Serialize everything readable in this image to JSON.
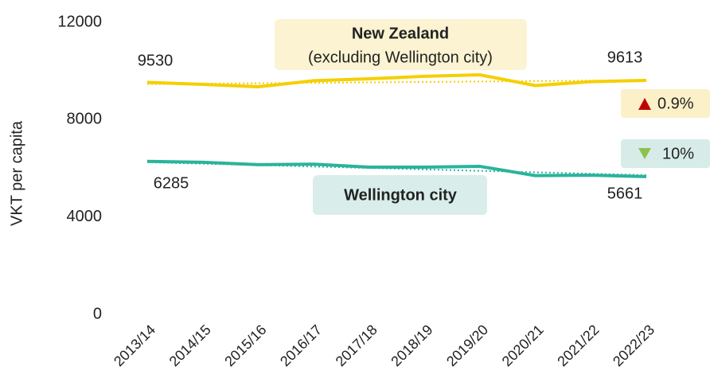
{
  "chart_data": {
    "type": "line",
    "y_label": "VKT per capita",
    "categories": [
      "2013/14",
      "2014/15",
      "2015/16",
      "2016/17",
      "2017/18",
      "2018/19",
      "2019/20",
      "2020/21",
      "2021/22",
      "2022/23"
    ],
    "series": [
      {
        "name": "New Zealand",
        "color": "#f5cf00",
        "values": [
          9530,
          9450,
          9350,
          9600,
          9680,
          9780,
          9840,
          9400,
          9560,
          9613
        ]
      },
      {
        "name": "Wellington city",
        "color": "#2bb39b",
        "values": [
          6285,
          6250,
          6150,
          6170,
          6050,
          6050,
          6080,
          5700,
          5720,
          5661
        ]
      }
    ],
    "trends": [
      [
        9460,
        9620
      ],
      [
        6250,
        5720
      ]
    ],
    "ylim": [
      0,
      12000
    ],
    "yticks": [
      0,
      4000,
      8000,
      12000
    ],
    "annotations": {
      "nz_subtitle": "(excluding Wellington city)",
      "nz_change": "0.9%",
      "wel_change": "10%"
    }
  }
}
